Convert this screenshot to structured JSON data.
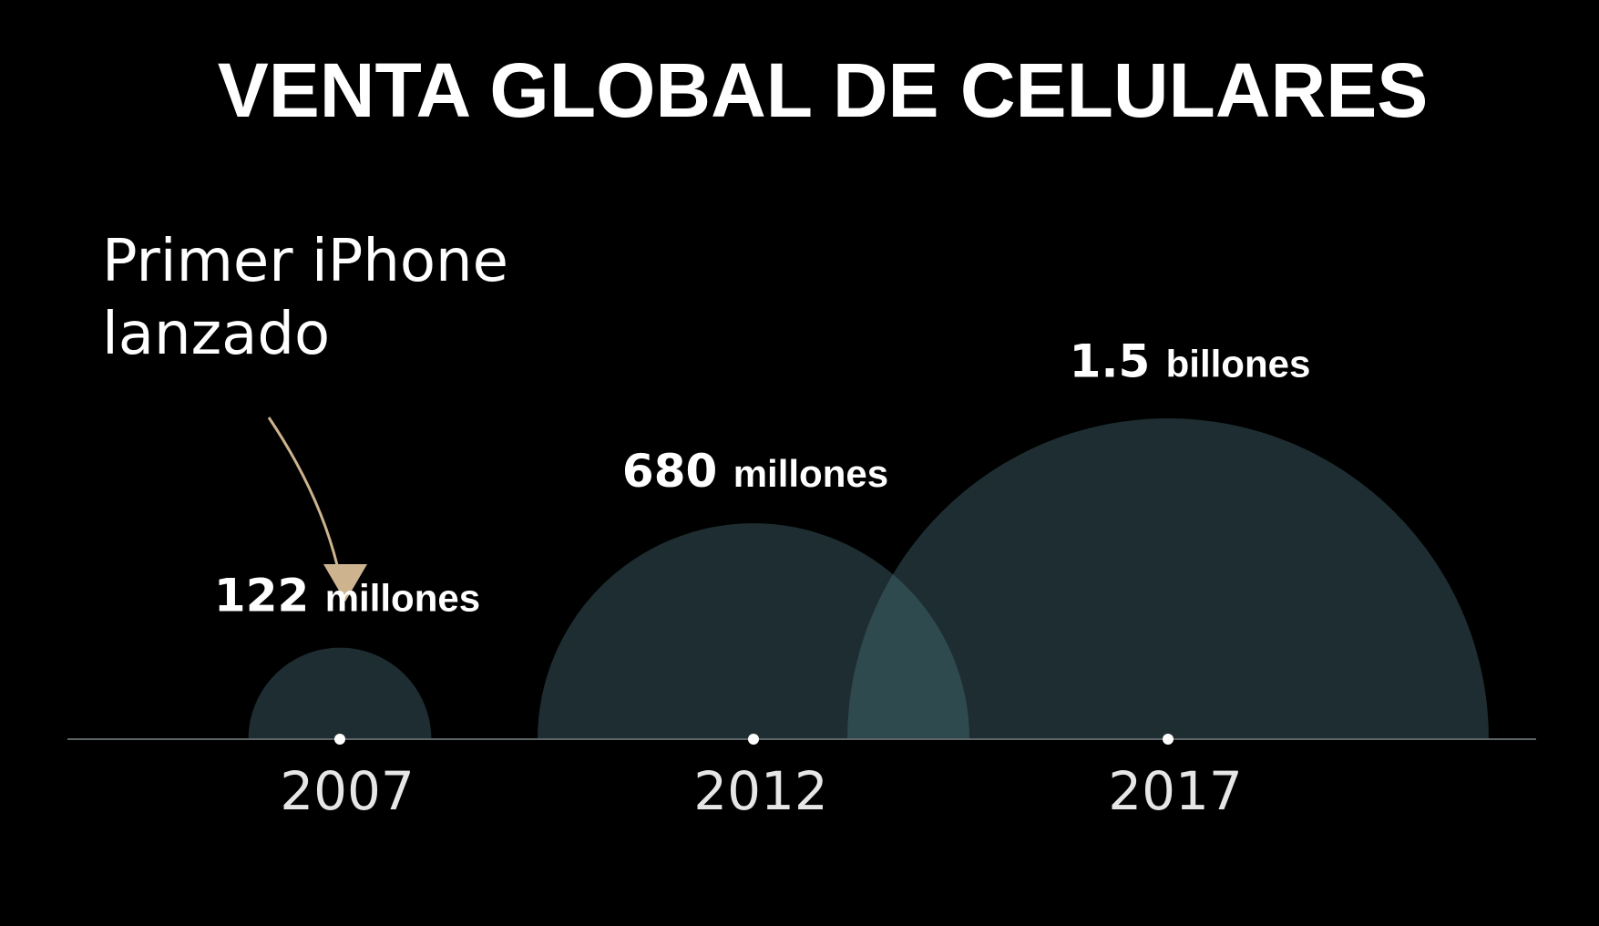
{
  "chart_data": {
    "type": "bubble",
    "title": "VENTA GLOBAL DE CELULARES",
    "annotation": {
      "lines": [
        "Primer iPhone",
        "lanzado"
      ],
      "target_category": "2007"
    },
    "categories": [
      "2007",
      "2012",
      "2017"
    ],
    "values": [
      122,
      680,
      1500
    ],
    "value_units": "millones",
    "labels": [
      {
        "number": "122",
        "unit": "millones"
      },
      {
        "number": "680",
        "unit": "millones"
      },
      {
        "number": "1.5",
        "unit": "billones"
      }
    ],
    "colors": {
      "background": "#000000",
      "bubble_fill": "#1e2d31",
      "bubble_overlap": "#2f4a4f",
      "axis": "#5c6466",
      "arrow": "#cdb48e",
      "text": "#ffffff",
      "tick_text": "#e6e6e6"
    }
  }
}
